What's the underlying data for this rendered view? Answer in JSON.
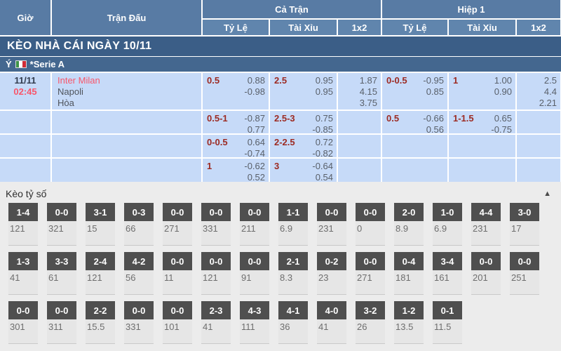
{
  "table_header": {
    "col_time": "Giờ",
    "col_match": "Trận Đấu",
    "group_full": "Cả Trận",
    "group_half": "Hiệp 1",
    "sub_handicap": "Tỷ Lệ",
    "sub_overunder": "Tài Xỉu",
    "sub_1x2": "1x2"
  },
  "section_bar": {
    "title": "KÈO NHÀ CÁI NGÀY 10/11"
  },
  "league_bar": {
    "country": "Ý",
    "flag_icon": "italy-flag",
    "name": "*Serie A"
  },
  "match": {
    "date": "11/11",
    "time": "02:45",
    "home": "Inter Milan",
    "away": "Napoli",
    "draw_label": "Hòa"
  },
  "odds_rows": [
    {
      "full": {
        "handicap": {
          "line": "0.5",
          "over": "0.88",
          "under": "-0.98"
        },
        "total": {
          "line": "2.5",
          "over": "0.95",
          "under": "0.95"
        },
        "x12": [
          "1.87",
          "4.15",
          "3.75"
        ]
      },
      "half": {
        "handicap": {
          "line": "0-0.5",
          "over": "-0.95",
          "under": "0.85"
        },
        "total": {
          "line": "1",
          "over": "1.00",
          "under": "0.90"
        },
        "x12": [
          "2.5",
          "4.4",
          "2.21"
        ]
      }
    },
    {
      "full": {
        "handicap": {
          "line": "0.5-1",
          "over": "-0.87",
          "under": "0.77"
        },
        "total": {
          "line": "2.5-3",
          "over": "0.75",
          "under": "-0.85"
        },
        "x12": []
      },
      "half": {
        "handicap": {
          "line": "0.5",
          "over": "-0.66",
          "under": "0.56"
        },
        "total": {
          "line": "1-1.5",
          "over": "0.65",
          "under": "-0.75"
        },
        "x12": []
      }
    },
    {
      "full": {
        "handicap": {
          "line": "0-0.5",
          "over": "0.64",
          "under": "-0.74"
        },
        "total": {
          "line": "2-2.5",
          "over": "0.72",
          "under": "-0.82"
        },
        "x12": []
      },
      "half": null
    },
    {
      "full": {
        "handicap": {
          "line": "1",
          "over": "-0.62",
          "under": "0.52"
        },
        "total": {
          "line": "3",
          "over": "-0.64",
          "under": "0.54"
        },
        "x12": []
      },
      "half": null
    }
  ],
  "correct_score": {
    "title": "Kèo tỷ số",
    "collapse_icon": "▲",
    "rows": [
      [
        {
          "score": "1-4",
          "odds": "121"
        },
        {
          "score": "0-0",
          "odds": "321"
        },
        {
          "score": "3-1",
          "odds": "15"
        },
        {
          "score": "0-3",
          "odds": "66"
        },
        {
          "score": "0-0",
          "odds": "271"
        },
        {
          "score": "0-0",
          "odds": "331"
        },
        {
          "score": "0-0",
          "odds": "211"
        },
        {
          "score": "1-1",
          "odds": "6.9"
        },
        {
          "score": "0-0",
          "odds": "231"
        },
        {
          "score": "0-0",
          "odds": "0"
        },
        {
          "score": "2-0",
          "odds": "8.9"
        },
        {
          "score": "1-0",
          "odds": "6.9"
        },
        {
          "score": "4-4",
          "odds": "231"
        },
        {
          "score": "3-0",
          "odds": "17"
        }
      ],
      [
        {
          "score": "1-3",
          "odds": "41"
        },
        {
          "score": "3-3",
          "odds": "61"
        },
        {
          "score": "2-4",
          "odds": "121"
        },
        {
          "score": "4-2",
          "odds": "56"
        },
        {
          "score": "0-0",
          "odds": "11"
        },
        {
          "score": "0-0",
          "odds": "121"
        },
        {
          "score": "0-0",
          "odds": "91"
        },
        {
          "score": "2-1",
          "odds": "8.3"
        },
        {
          "score": "0-2",
          "odds": "23"
        },
        {
          "score": "0-0",
          "odds": "271"
        },
        {
          "score": "0-4",
          "odds": "181"
        },
        {
          "score": "3-4",
          "odds": "161"
        },
        {
          "score": "0-0",
          "odds": "201"
        },
        {
          "score": "0-0",
          "odds": "251"
        }
      ],
      [
        {
          "score": "0-0",
          "odds": "301"
        },
        {
          "score": "0-0",
          "odds": "311"
        },
        {
          "score": "2-2",
          "odds": "15.5"
        },
        {
          "score": "0-0",
          "odds": "331"
        },
        {
          "score": "0-0",
          "odds": "101"
        },
        {
          "score": "2-3",
          "odds": "41"
        },
        {
          "score": "4-3",
          "odds": "111"
        },
        {
          "score": "4-1",
          "odds": "36"
        },
        {
          "score": "4-0",
          "odds": "41"
        },
        {
          "score": "3-2",
          "odds": "26"
        },
        {
          "score": "1-2",
          "odds": "13.5"
        },
        {
          "score": "0-1",
          "odds": "11.5"
        }
      ]
    ]
  },
  "colors": {
    "header_blue": "#587ba4",
    "subheader_blue": "#6085ad",
    "section_bar_blue": "#3b5e87",
    "league_bar_blue": "#44678f",
    "odds_cell_blue": "#c6daf8",
    "handicap_maroon": "#9c2a22",
    "odds_value_gray": "#59606a",
    "team_time_red": "#f8566a",
    "tile_header_gray": "#4f4f4f",
    "tile_body_gray": "#e6e6e6",
    "section_bg": "#ececec"
  }
}
